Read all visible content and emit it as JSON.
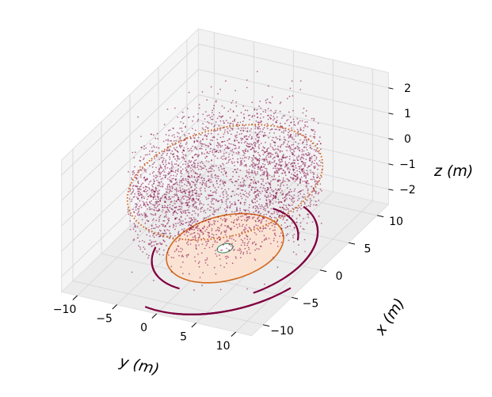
{
  "chart_data": {
    "type": "scatter",
    "title": "",
    "xlabel": "x (m)",
    "ylabel": "y (m)",
    "zlabel": "z (m)",
    "xlim": [
      -12,
      12
    ],
    "ylim": [
      -12,
      12
    ],
    "zlim": [
      -2.6,
      2.6
    ],
    "xticks": [
      -10,
      -5,
      0,
      5,
      10
    ],
    "yticks": [
      -10,
      -5,
      0,
      5,
      10
    ],
    "zticks": [
      -2,
      -1,
      0,
      1,
      2
    ],
    "tick_labels": {
      "x": [
        "−10",
        "−5",
        "0",
        "5",
        "10"
      ],
      "y": [
        "−10",
        "−5",
        "0",
        "5",
        "10"
      ],
      "z": [
        "−2",
        "−1",
        "0",
        "1",
        "2"
      ]
    },
    "grid": true,
    "colors": {
      "scatter": "#800040",
      "ring_dotted": "#d2691e",
      "floor_disk_fill": "#fbe3d4",
      "floor_disk_edge": "#d2691e",
      "inner_ellipse": "#2e8b57",
      "trajectories": "#800040",
      "pane": "#f2f2f2",
      "grid": "#d9d9d9"
    },
    "series": [
      {
        "type": "scatter3d",
        "description_of_distribution": "dense cloud of points concentrated in an annulus of radius ~3–10 m around the origin, spanning z from about -2.5 to 2.5",
        "r_range": [
          3,
          10
        ],
        "z_range": [
          -2.5,
          2.5
        ]
      },
      {
        "type": "ring",
        "style": "dotted",
        "radius": 10,
        "z": 0
      },
      {
        "type": "disk",
        "radius": 6,
        "z": -2.6
      },
      {
        "type": "ring",
        "style": "solid",
        "radius": 0.8,
        "z": -2.6
      },
      {
        "type": "trajectory_arcs",
        "radii": [
          7.5,
          9.5,
          11.5
        ],
        "z": -2.6
      }
    ]
  }
}
